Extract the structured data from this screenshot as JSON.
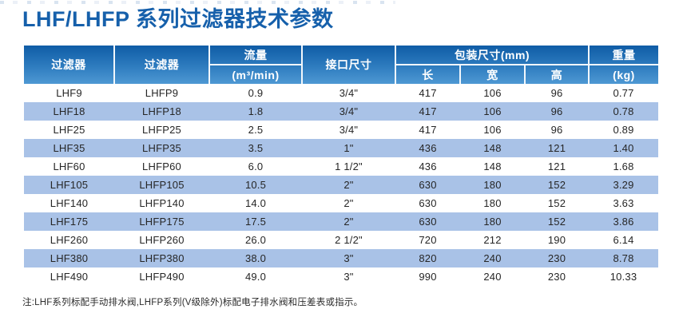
{
  "title": "LHF/LHFP 系列过滤器技术参数",
  "table": {
    "header": {
      "filter1": "过滤器",
      "filter2": "过滤器",
      "flow_label": "流量",
      "flow_unit": "(m³/min)",
      "port_size": "接口尺寸",
      "package_label": "包装尺寸(mm)",
      "length": "长",
      "width": "宽",
      "height": "高",
      "weight_label": "重量",
      "weight_unit": "(kg)"
    },
    "rows": [
      [
        "LHF9",
        "LHFP9",
        "0.9",
        "3/4\"",
        "417",
        "106",
        "96",
        "0.77"
      ],
      [
        "LHF18",
        "LHFP18",
        "1.8",
        "3/4\"",
        "417",
        "106",
        "96",
        "0.78"
      ],
      [
        "LHF25",
        "LHFP25",
        "2.5",
        "3/4\"",
        "417",
        "106",
        "96",
        "0.89"
      ],
      [
        "LHF35",
        "LHFP35",
        "3.5",
        "1\"",
        "436",
        "148",
        "121",
        "1.40"
      ],
      [
        "LHF60",
        "LHFP60",
        "6.0",
        "1 1/2\"",
        "436",
        "148",
        "121",
        "1.68"
      ],
      [
        "LHF105",
        "LHFP105",
        "10.5",
        "2\"",
        "630",
        "180",
        "152",
        "3.29"
      ],
      [
        "LHF140",
        "LHFP140",
        "14.0",
        "2\"",
        "630",
        "180",
        "152",
        "3.63"
      ],
      [
        "LHF175",
        "LHFP175",
        "17.5",
        "2\"",
        "630",
        "180",
        "152",
        "3.86"
      ],
      [
        "LHF260",
        "LHFP260",
        "26.0",
        "2 1/2\"",
        "720",
        "212",
        "190",
        "6.14"
      ],
      [
        "LHF380",
        "LHFP380",
        "38.0",
        "3\"",
        "820",
        "240",
        "230",
        "8.78"
      ],
      [
        "LHF490",
        "LHFP490",
        "49.0",
        "3\"",
        "990",
        "240",
        "230",
        "10.33"
      ]
    ]
  },
  "note": "注:LHF系列标配手动排水阀,LHFP系列(V级除外)标配电子排水阀和压差表或指示。",
  "colors": {
    "title": "#1660ab",
    "header_gradient_top": "#0f5ca6",
    "header_gradient_bottom": "#4e98d3",
    "row_alt": "#a9c2e7",
    "body_text": "#262626"
  }
}
